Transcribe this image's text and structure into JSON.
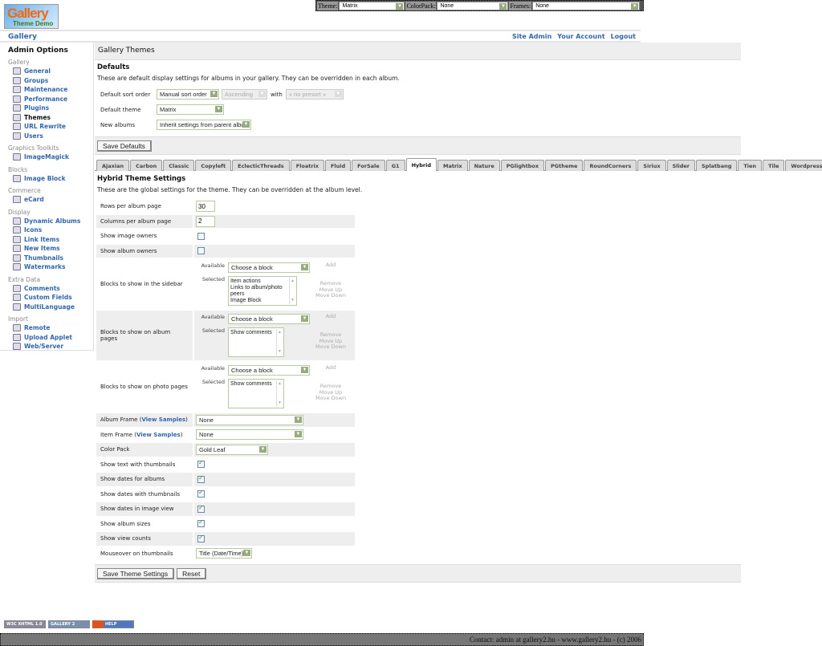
{
  "logo": {
    "text1": "Gallery",
    "text2": "Theme Demo"
  },
  "topbar": {
    "theme_label": "Theme:",
    "theme_value": "Matrix",
    "colorpack_label": "ColorPack:",
    "colorpack_value": "None",
    "frames_label": "Frames:",
    "frames_value": "None"
  },
  "nav": {
    "gallery": "Gallery",
    "links": [
      "Site Admin",
      "Your Account",
      "Logout"
    ]
  },
  "sidebar": {
    "title": "Admin Options",
    "groups": [
      {
        "label": "Gallery",
        "items": [
          "General",
          "Groups",
          "Maintenance",
          "Performance",
          "Plugins",
          "Themes",
          "URL Rewrite",
          "Users"
        ],
        "current": "Themes"
      },
      {
        "label": "Graphics Toolkits",
        "items": [
          "ImageMagick"
        ]
      },
      {
        "label": "Blocks",
        "items": [
          "Image Block"
        ]
      },
      {
        "label": "Commerce",
        "items": [
          "eCard"
        ]
      },
      {
        "label": "Display",
        "items": [
          "Dynamic Albums",
          "Icons",
          "Link Items",
          "New Items",
          "Thumbnails",
          "Watermarks"
        ]
      },
      {
        "label": "Extra Data",
        "items": [
          "Comments",
          "Custom Fields",
          "MultiLanguage"
        ]
      },
      {
        "label": "Import",
        "items": [
          "Remote",
          "Upload Applet",
          "Web/Server"
        ]
      }
    ]
  },
  "main": {
    "title": "Gallery Themes",
    "defaults": {
      "heading": "Defaults",
      "description": "These are default display settings for albums in your gallery. They can be overridden in each album.",
      "sort_label": "Default sort order",
      "sort_value": "Manual sort order",
      "direction_value": "Ascending",
      "with_label": "with",
      "presort_value": "« no presort »",
      "theme_label": "Default theme",
      "theme_value": "Matrix",
      "new_albums_label": "New albums",
      "new_albums_value": "Inherit settings from parent album",
      "save_label": "Save Defaults"
    },
    "tabs": [
      "Ajaxian",
      "Carbon",
      "Classic",
      "Copyleft",
      "EclecticThreads",
      "Floatrix",
      "Fluid",
      "ForSale",
      "G1",
      "Hybrid",
      "Matrix",
      "Nature",
      "PGlightbox",
      "PGtheme",
      "RoundCorners",
      "Siriux",
      "Slider",
      "Splatbang",
      "Tien",
      "Tile",
      "WordpressEmbedded"
    ],
    "active_tab": "Hybrid",
    "theme_settings": {
      "heading": "Hybrid Theme Settings",
      "description": "These are the global settings for the theme. They can be overridden at the album level.",
      "rows": [
        {
          "label": "Rows per album page",
          "type": "text",
          "value": "30"
        },
        {
          "label": "Columns per album page",
          "type": "text",
          "value": "2"
        },
        {
          "label": "Show image owners",
          "type": "checkbox",
          "checked": false
        },
        {
          "label": "Show album owners",
          "type": "checkbox",
          "checked": false
        },
        {
          "label": "Blocks to show in the sidebar",
          "type": "blocks",
          "available_label": "Available",
          "available_value": "Choose a block",
          "add": "Add",
          "selected_label": "Selected",
          "selected": [
            "Item actions",
            "Links to album/photo peers",
            "Image Block"
          ],
          "actions": [
            "Remove",
            "Move Up",
            "Move Down"
          ]
        },
        {
          "label": "Blocks to show on album pages",
          "type": "blocks",
          "available_label": "Available",
          "available_value": "Choose a block",
          "add": "Add",
          "selected_label": "Selected",
          "selected": [
            "Show comments"
          ],
          "actions": [
            "Remove",
            "Move Up",
            "Move Down"
          ]
        },
        {
          "label": "Blocks to show on photo pages",
          "type": "blocks",
          "available_label": "Available",
          "available_value": "Choose a block",
          "add": "Add",
          "selected_label": "Selected",
          "selected": [
            "Show comments"
          ],
          "actions": [
            "Remove",
            "Move Up",
            "Move Down"
          ]
        },
        {
          "label": "Album Frame",
          "link": "View Samples",
          "type": "select",
          "value": "None",
          "wide": true
        },
        {
          "label": "Item Frame",
          "link": "View Samples",
          "type": "select",
          "value": "None",
          "wide": true
        },
        {
          "label": "Color Pack",
          "type": "select",
          "value": "Gold Leaf"
        },
        {
          "label": "Show text with thumbnails",
          "type": "checkbox",
          "checked": true
        },
        {
          "label": "Show dates for albums",
          "type": "checkbox",
          "checked": true
        },
        {
          "label": "Show dates with thumbnails",
          "type": "checkbox",
          "checked": true
        },
        {
          "label": "Show dates in image view",
          "type": "checkbox",
          "checked": true
        },
        {
          "label": "Show album sizes",
          "type": "checkbox",
          "checked": true
        },
        {
          "label": "Show view counts",
          "type": "checkbox",
          "checked": true
        },
        {
          "label": "Mouseover on thumbnails",
          "type": "select",
          "value": "Title (Date/Time)"
        }
      ],
      "save_label": "Save Theme Settings",
      "reset_label": "Reset"
    }
  },
  "badges": [
    "W3C XHTML 1.0",
    "GALLERY 2",
    "HELP GALLERY!"
  ],
  "footer": "Contact: admin at gallery2.hu - www.gallery2.hu - (c) 2006"
}
